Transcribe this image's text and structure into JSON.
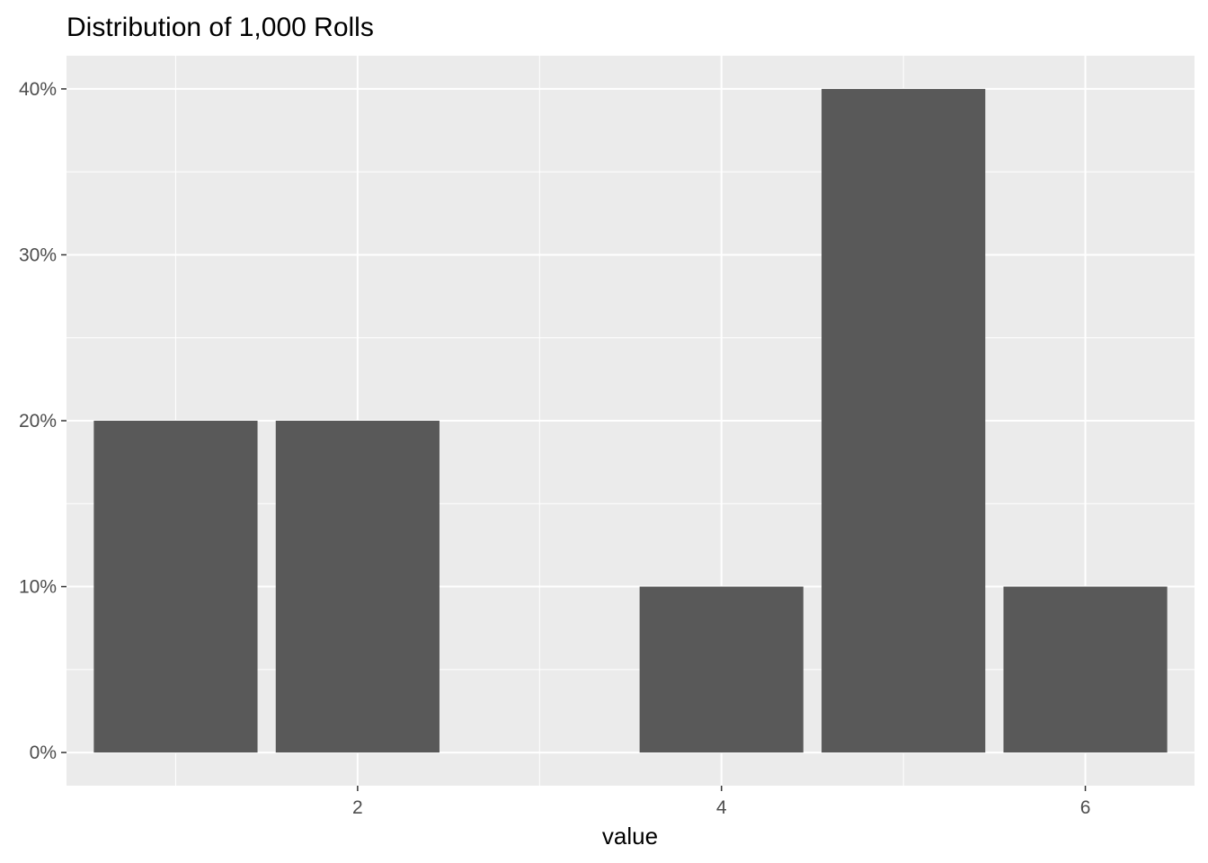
{
  "chart_data": {
    "type": "bar",
    "title": "Distribution of 1,000 Rolls",
    "xlabel": "value",
    "ylabel": "",
    "x": [
      1,
      2,
      4,
      5,
      6
    ],
    "values": [
      0.2,
      0.2,
      0.1,
      0.4,
      0.1
    ],
    "xlim": [
      0.4,
      6.6
    ],
    "ylim": [
      -0.02,
      0.42
    ],
    "x_ticks": [
      2,
      4,
      6
    ],
    "x_tick_labels": [
      "2",
      "4",
      "6"
    ],
    "y_ticks": [
      0,
      0.1,
      0.2,
      0.3,
      0.4
    ],
    "y_tick_labels": [
      "0%",
      "10%",
      "20%",
      "30%",
      "40%"
    ],
    "grid": true,
    "legend": "none",
    "colors": {
      "bar": "#595959",
      "panel_background": "#ebebeb",
      "grid_line": "#ffffff",
      "tick_label": "#4d4d4d",
      "tick_mark": "#333333"
    }
  }
}
